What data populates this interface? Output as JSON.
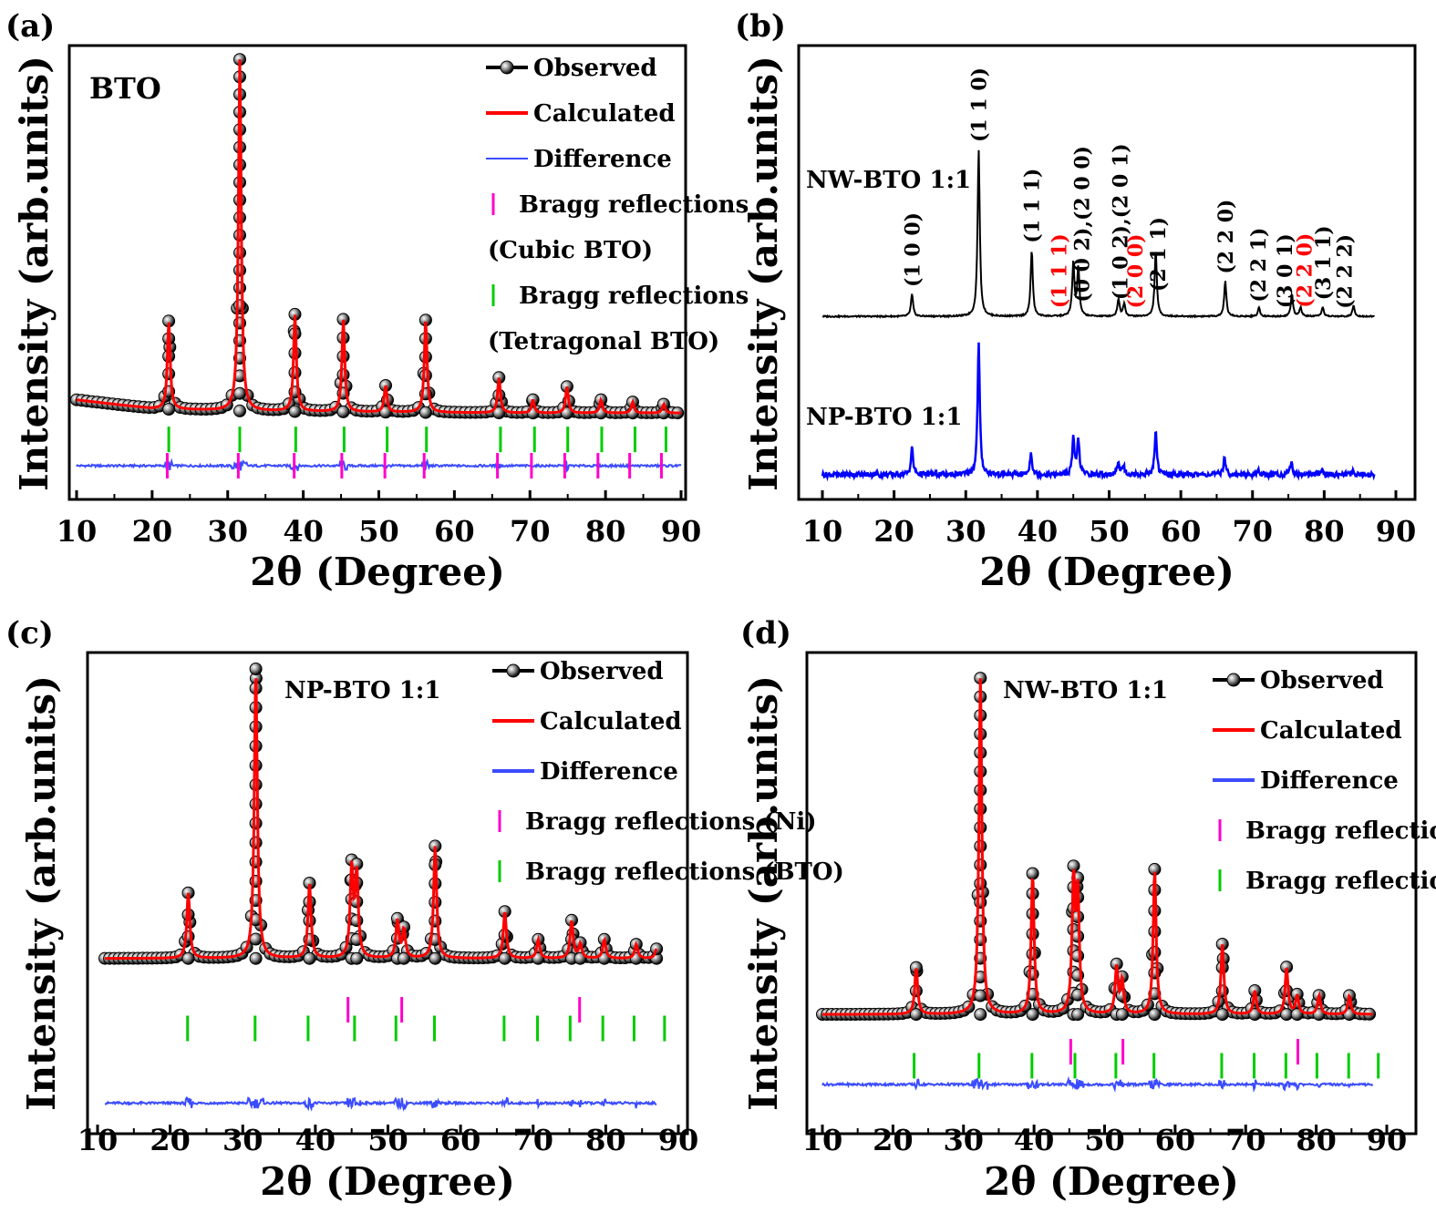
{
  "chart_data": [
    {
      "panel": "(a)",
      "type": "line",
      "sample_label": "BTO",
      "xlabel": "2θ  (Degree)",
      "ylabel": "Intensity (arb.units)",
      "xlim": [
        10,
        90
      ],
      "xticks": [
        10,
        20,
        30,
        40,
        50,
        60,
        70,
        80,
        90
      ],
      "ylim": [
        0,
        100
      ],
      "legend": [
        {
          "label": "Observed",
          "marker": "sphere-line",
          "color": "#000000"
        },
        {
          "label": "Calculated",
          "marker": "line",
          "color": "#ff0000"
        },
        {
          "label": "Difference",
          "marker": "thin-line",
          "color": "#3b4cff"
        },
        {
          "label": "Bragg reflections",
          "marker": "tick",
          "color": "#ff00cc"
        },
        {
          "label": "(Cubic BTO)",
          "marker": "none",
          "color": "#000000"
        },
        {
          "label": "Bragg reflections",
          "marker": "tick",
          "color": "#00cc00"
        },
        {
          "label": "(Tetragonal BTO)",
          "marker": "none",
          "color": "#000000"
        }
      ],
      "legend_placement": "top-right",
      "baseline": {
        "x": [
          10,
          20,
          30,
          50,
          70,
          90
        ],
        "y": [
          21,
          19,
          18.5,
          18.2,
          18,
          18
        ]
      },
      "peaks": [
        {
          "x": 22.2,
          "height": 20
        },
        {
          "x": 31.6,
          "height": 80
        },
        {
          "x": 38.9,
          "height": 22
        },
        {
          "x": 45.3,
          "height": 21
        },
        {
          "x": 50.9,
          "height": 6
        },
        {
          "x": 56.2,
          "height": 21
        },
        {
          "x": 65.9,
          "height": 8
        },
        {
          "x": 70.4,
          "height": 3
        },
        {
          "x": 74.9,
          "height": 6
        },
        {
          "x": 79.4,
          "height": 3
        },
        {
          "x": 83.6,
          "height": 2.5
        },
        {
          "x": 87.7,
          "height": 2
        }
      ],
      "difference_offset": 6,
      "bragg_series": [
        {
          "name": "Cubic BTO",
          "color": "#ff00cc",
          "y": 6,
          "x": [
            22.0,
            31.4,
            38.8,
            45.1,
            50.8,
            56.0,
            65.7,
            70.2,
            74.6,
            79.0,
            83.2,
            87.4
          ]
        },
        {
          "name": "Tetragonal BTO",
          "color": "#00cc00",
          "y": 12,
          "x": [
            22.2,
            31.6,
            39.0,
            45.4,
            51.1,
            56.3,
            66.1,
            70.6,
            75.0,
            79.5,
            83.9,
            88.0
          ]
        }
      ]
    },
    {
      "panel": "(b)",
      "type": "line",
      "xlabel": "2θ  (Degree)",
      "ylabel": "Intensity (arb.units)",
      "xlim": [
        10,
        90
      ],
      "xticks": [
        10,
        20,
        30,
        40,
        50,
        60,
        70,
        80,
        90
      ],
      "ylim": [
        0,
        100
      ],
      "series": [
        {
          "name": "NW-BTO 1:1",
          "color": "#000000",
          "baseline": 40,
          "peaks": [
            {
              "x": 22.5,
              "height": 5
            },
            {
              "x": 31.8,
              "height": 38
            },
            {
              "x": 39.2,
              "height": 15
            },
            {
              "x": 45.0,
              "height": 12
            },
            {
              "x": 45.7,
              "height": 11
            },
            {
              "x": 51.3,
              "height": 4
            },
            {
              "x": 52.1,
              "height": 3
            },
            {
              "x": 56.5,
              "height": 15
            },
            {
              "x": 66.2,
              "height": 8
            },
            {
              "x": 70.9,
              "height": 2
            },
            {
              "x": 75.5,
              "height": 5
            },
            {
              "x": 76.7,
              "height": 2
            },
            {
              "x": 79.8,
              "height": 2
            },
            {
              "x": 84.1,
              "height": 2.5
            }
          ]
        },
        {
          "name": "NP-BTO 1:1",
          "color": "#0000ff",
          "baseline": 4,
          "peaks": [
            {
              "x": 22.5,
              "height": 6
            },
            {
              "x": 31.8,
              "height": 30
            },
            {
              "x": 39.1,
              "height": 5
            },
            {
              "x": 45.0,
              "height": 8
            },
            {
              "x": 45.7,
              "height": 8
            },
            {
              "x": 51.3,
              "height": 3
            },
            {
              "x": 52.0,
              "height": 2
            },
            {
              "x": 56.5,
              "height": 10
            },
            {
              "x": 66.1,
              "height": 4
            },
            {
              "x": 70.8,
              "height": 1
            },
            {
              "x": 75.4,
              "height": 3
            },
            {
              "x": 79.7,
              "height": 1
            },
            {
              "x": 84.0,
              "height": 1
            }
          ]
        }
      ],
      "hkl_labels": [
        {
          "text": "(1 0 0)",
          "x": 22.5,
          "color": "#000000"
        },
        {
          "text": "(1 1 0)",
          "x": 31.8,
          "color": "#000000"
        },
        {
          "text": "(1 1 1)",
          "x": 39.2,
          "color": "#000000"
        },
        {
          "text": "(1 1 1)",
          "x": 43.0,
          "color": "#ff0000"
        },
        {
          "text": "(0 0 2),(2 0 0)",
          "x": 46.2,
          "color": "#000000"
        },
        {
          "text": "(1 0 2),(2 0 1)",
          "x": 51.5,
          "color": "#000000"
        },
        {
          "text": "(2 0 0)",
          "x": 53.6,
          "color": "#ff0000"
        },
        {
          "text": "(2 1 1)",
          "x": 56.8,
          "color": "#000000"
        },
        {
          "text": "(2 2 0)",
          "x": 66.2,
          "color": "#000000"
        },
        {
          "text": "(2 2 1)",
          "x": 70.8,
          "color": "#000000"
        },
        {
          "text": "(3 0 1)",
          "x": 74.5,
          "color": "#000000"
        },
        {
          "text": "(2 2 0)",
          "x": 77.2,
          "color": "#ff0000"
        },
        {
          "text": "(3 1 1)",
          "x": 79.8,
          "color": "#000000"
        },
        {
          "text": "(2 2 2)",
          "x": 82.8,
          "color": "#000000"
        }
      ]
    },
    {
      "panel": "(c)",
      "type": "line",
      "sample_label": "NP-BTO 1:1",
      "xlabel": "2θ  (Degree)",
      "ylabel": "Intensity (arb.units)",
      "xlim": [
        10,
        90
      ],
      "xticks": [
        10,
        20,
        30,
        40,
        50,
        60,
        70,
        80,
        90
      ],
      "ylim": [
        0,
        100
      ],
      "legend": [
        {
          "label": "Observed",
          "marker": "sphere-line",
          "color": "#000000"
        },
        {
          "label": "Calculated",
          "marker": "line",
          "color": "#ff0000"
        },
        {
          "label": "Difference",
          "marker": "line",
          "color": "#3b4cff"
        },
        {
          "label": "Bragg reflections (Ni)",
          "marker": "tick",
          "color": "#ff00cc"
        },
        {
          "label": "Bragg reflections (BTO)",
          "marker": "tick",
          "color": "#00cc00"
        }
      ],
      "legend_placement": "top-right",
      "baseline": {
        "x": [
          11,
          30,
          60,
          87
        ],
        "y": [
          36,
          36,
          36,
          36
        ]
      },
      "peaks": [
        {
          "x": 22.5,
          "height": 14
        },
        {
          "x": 31.8,
          "height": 62
        },
        {
          "x": 39.2,
          "height": 16
        },
        {
          "x": 45.0,
          "height": 19
        },
        {
          "x": 45.7,
          "height": 18
        },
        {
          "x": 51.3,
          "height": 8
        },
        {
          "x": 52.2,
          "height": 6
        },
        {
          "x": 56.5,
          "height": 24
        },
        {
          "x": 66.1,
          "height": 10
        },
        {
          "x": 70.7,
          "height": 4
        },
        {
          "x": 75.3,
          "height": 8
        },
        {
          "x": 76.5,
          "height": 3
        },
        {
          "x": 79.8,
          "height": 4
        },
        {
          "x": 84.2,
          "height": 3
        },
        {
          "x": 87.0,
          "height": 2
        }
      ],
      "difference_offset": 5,
      "bragg_series": [
        {
          "name": "Ni",
          "color": "#ff00cc",
          "y": 25,
          "x": [
            44.5,
            51.9,
            76.4
          ]
        },
        {
          "name": "BTO",
          "color": "#00cc00",
          "y": 21,
          "x": [
            22.4,
            31.7,
            39.0,
            45.4,
            51.1,
            56.4,
            66.0,
            70.6,
            75.1,
            79.6,
            83.9,
            88.1
          ]
        }
      ]
    },
    {
      "panel": "(d)",
      "type": "line",
      "sample_label": "NW-BTO 1:1",
      "xlabel": "2θ  (Degree)",
      "ylabel": "Intensity (arb.units)",
      "xlim": [
        10,
        90
      ],
      "xticks": [
        10,
        20,
        30,
        40,
        50,
        60,
        70,
        80,
        90
      ],
      "ylim": [
        0,
        100
      ],
      "legend": [
        {
          "label": "Observed",
          "marker": "sphere-line",
          "color": "#000000"
        },
        {
          "label": "Calculated",
          "marker": "line",
          "color": "#ff0000"
        },
        {
          "label": "Difference",
          "marker": "line",
          "color": "#3b4cff"
        },
        {
          "label": "Bragg reflections (Ni)",
          "marker": "tick",
          "color": "#ff00cc"
        },
        {
          "label": "Bragg reflections (BTO)",
          "marker": "tick",
          "color": "#00cc00"
        }
      ],
      "legend_placement": "top-right",
      "baseline": {
        "x": [
          10,
          30,
          60,
          88
        ],
        "y": [
          24,
          24,
          24,
          24
        ]
      },
      "peaks": [
        {
          "x": 23.3,
          "height": 10
        },
        {
          "x": 32.4,
          "height": 72
        },
        {
          "x": 39.8,
          "height": 30
        },
        {
          "x": 45.6,
          "height": 28
        },
        {
          "x": 46.2,
          "height": 25
        },
        {
          "x": 51.7,
          "height": 10
        },
        {
          "x": 52.5,
          "height": 7
        },
        {
          "x": 57.1,
          "height": 31
        },
        {
          "x": 66.7,
          "height": 15
        },
        {
          "x": 71.3,
          "height": 5
        },
        {
          "x": 75.8,
          "height": 10
        },
        {
          "x": 77.3,
          "height": 4
        },
        {
          "x": 80.4,
          "height": 4
        },
        {
          "x": 84.7,
          "height": 4
        }
      ],
      "difference_offset": 9,
      "bragg_series": [
        {
          "name": "Ni",
          "color": "#ff00cc",
          "y": 16,
          "x": [
            45.2,
            52.6,
            77.4
          ]
        },
        {
          "name": "BTO",
          "color": "#00cc00",
          "y": 13,
          "x": [
            23.0,
            32.2,
            39.7,
            45.8,
            51.6,
            57.0,
            66.6,
            71.2,
            75.7,
            80.1,
            84.6,
            88.8
          ]
        }
      ]
    }
  ]
}
